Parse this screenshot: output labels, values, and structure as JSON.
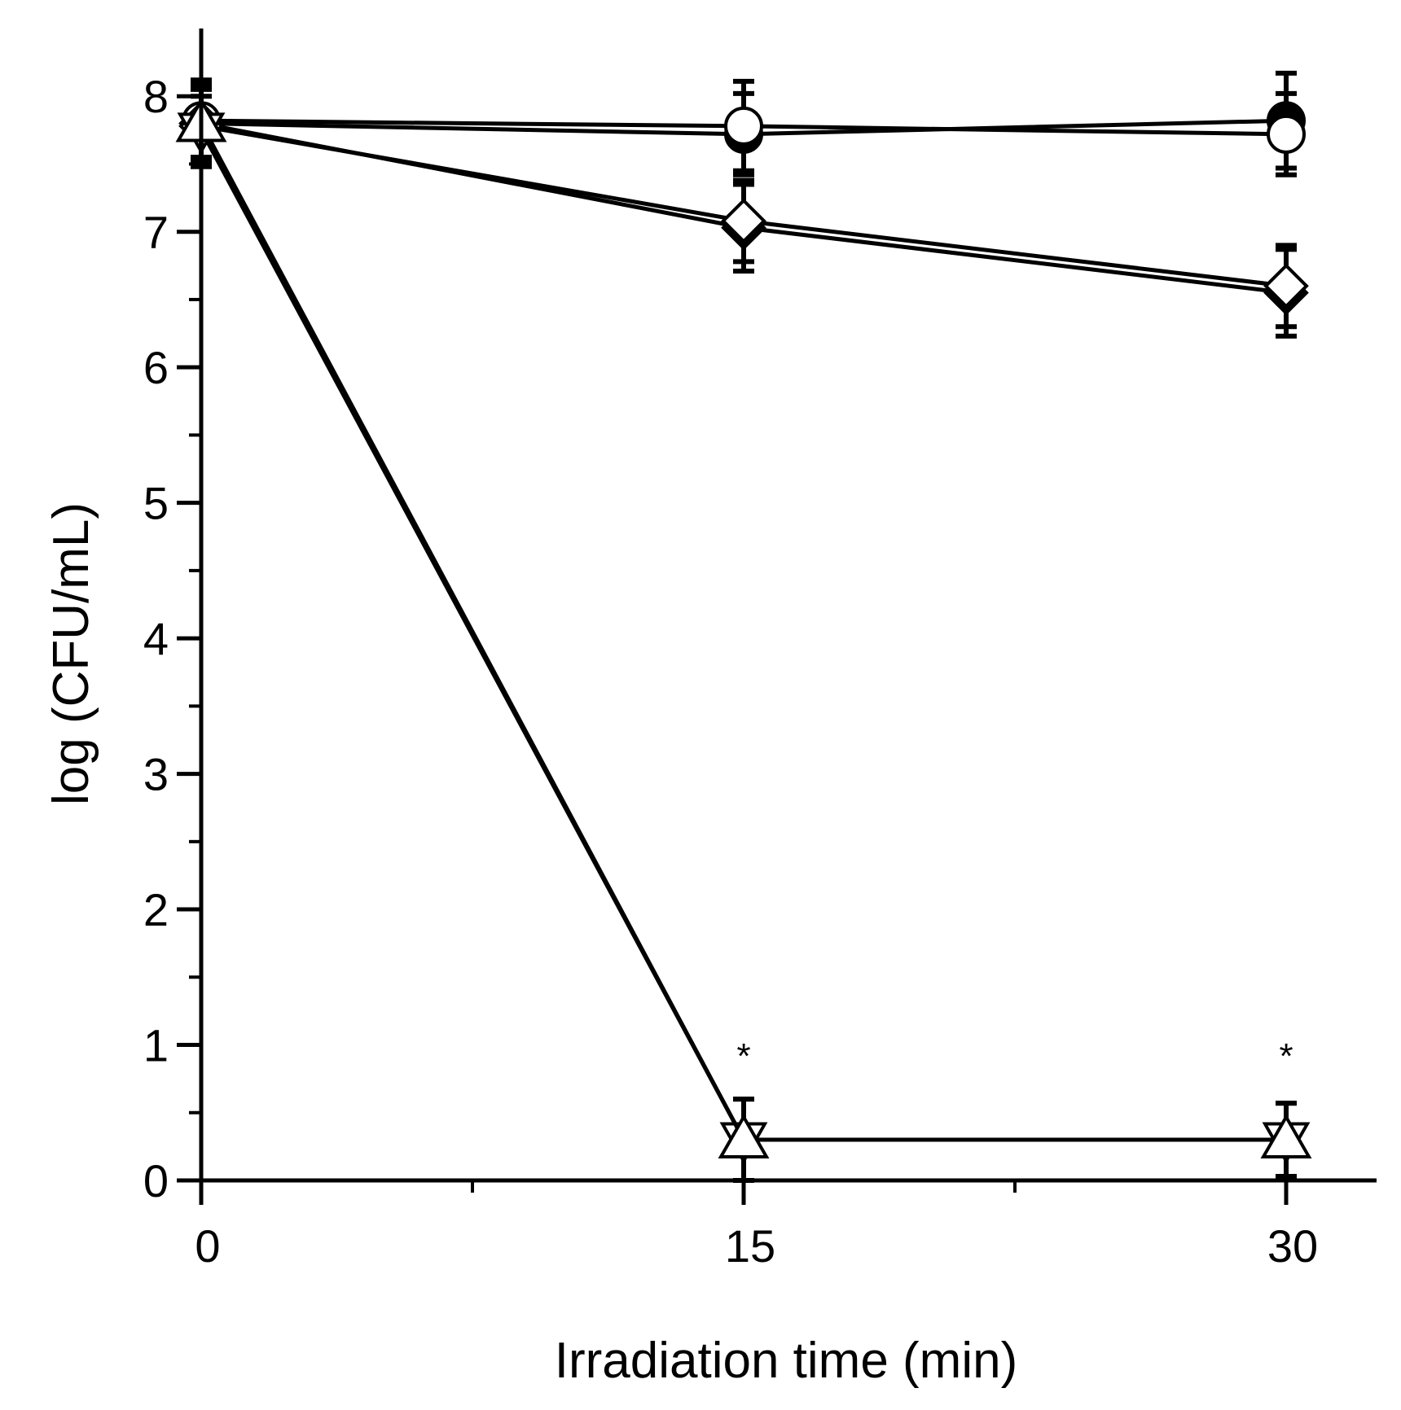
{
  "chart_data": {
    "type": "line",
    "title": "",
    "xlabel": "Irradiation time (min)",
    "ylabel": "log (CFU/mL)",
    "x": [
      0,
      15,
      30
    ],
    "xlim": [
      0,
      32.5
    ],
    "ylim": [
      0,
      8.5
    ],
    "xticks": [
      {
        "value": 0,
        "label": "0"
      },
      {
        "value": 15,
        "label": "15"
      },
      {
        "value": 30,
        "label": "30"
      }
    ],
    "xminor": [
      7.5,
      22.5
    ],
    "yticks": [
      {
        "value": 0,
        "label": "0"
      },
      {
        "value": 1,
        "label": "1"
      },
      {
        "value": 2,
        "label": "2"
      },
      {
        "value": 3,
        "label": "3"
      },
      {
        "value": 4,
        "label": "4"
      },
      {
        "value": 5,
        "label": "5"
      },
      {
        "value": 6,
        "label": "6"
      },
      {
        "value": 7,
        "label": "7"
      },
      {
        "value": 8,
        "label": "8"
      }
    ],
    "yminor": [
      0.5,
      1.5,
      2.5,
      3.5,
      4.5,
      5.5,
      6.5,
      7.5
    ],
    "grid": false,
    "series": [
      {
        "name": "filled-circle",
        "marker": "circle",
        "fill": "#000000",
        "values": [
          7.8,
          7.72,
          7.82
        ],
        "errors": [
          0.3,
          0.3,
          0.35
        ]
      },
      {
        "name": "open-circle",
        "marker": "circle",
        "fill": "#ffffff",
        "values": [
          7.82,
          7.78,
          7.72
        ],
        "errors": [
          0.3,
          0.33,
          0.3
        ]
      },
      {
        "name": "filled-diamond",
        "marker": "diamond",
        "fill": "#000000",
        "values": [
          7.8,
          7.03,
          6.55
        ],
        "errors": [
          0.3,
          0.32,
          0.32
        ]
      },
      {
        "name": "open-diamond",
        "marker": "diamond",
        "fill": "#ffffff",
        "values": [
          7.78,
          7.08,
          6.6
        ],
        "errors": [
          0.3,
          0.3,
          0.3
        ]
      },
      {
        "name": "open-triangle-down",
        "marker": "triangle-down",
        "fill": "#ffffff",
        "values": [
          7.75,
          0.3,
          0.3
        ],
        "errors": [
          0.25,
          0.3,
          0.27
        ]
      },
      {
        "name": "open-triangle-up",
        "marker": "triangle-up",
        "fill": "#ffffff",
        "values": [
          7.8,
          0.3,
          0.3
        ],
        "errors": [
          0.25,
          0.3,
          0.27
        ]
      }
    ],
    "annotations": [
      {
        "text": "*",
        "x": 15,
        "y": 0.95
      },
      {
        "text": "*",
        "x": 30,
        "y": 0.95
      }
    ]
  }
}
